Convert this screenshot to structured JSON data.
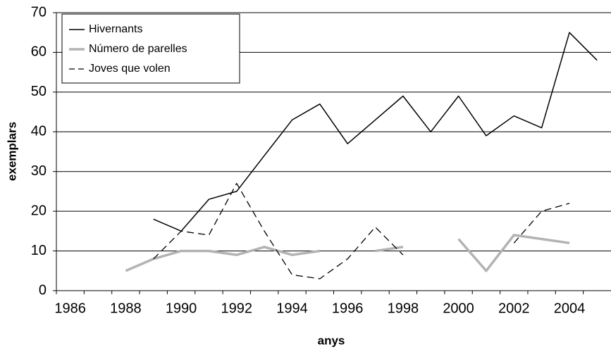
{
  "chart_data": {
    "type": "line",
    "x_label": "anys",
    "y_label": "exemplars",
    "categories": [
      "1986",
      null,
      "1988",
      null,
      "1990",
      null,
      "1992",
      null,
      "1994",
      null,
      "1996",
      null,
      "1998",
      null,
      "2000",
      null,
      "2002",
      null,
      "2004",
      null
    ],
    "series": [
      {
        "name": "Hivernants",
        "color": "#000000",
        "dashed": false,
        "values": [
          null,
          null,
          null,
          18,
          15,
          23,
          25,
          34,
          43,
          47,
          37,
          43,
          49,
          40,
          49,
          39,
          44,
          41,
          65,
          58
        ]
      },
      {
        "name": "Número de parelles",
        "color": "#b3b3b3",
        "dashed": false,
        "values": [
          null,
          null,
          5,
          8,
          10,
          10,
          9,
          11,
          9,
          10,
          null,
          10,
          11,
          null,
          13,
          5,
          14,
          13,
          12,
          null
        ]
      },
      {
        "name": "Joves que volen",
        "color": "#000000",
        "dashed": true,
        "values": [
          null,
          null,
          null,
          8,
          15,
          14,
          27,
          15,
          4,
          3,
          8,
          16,
          9,
          null,
          null,
          null,
          12,
          20,
          22,
          null
        ]
      }
    ],
    "ylim": [
      0,
      70
    ],
    "yticks": [
      0,
      10,
      20,
      30,
      40,
      50,
      60,
      70
    ],
    "grid": true,
    "legend": "upper left"
  }
}
